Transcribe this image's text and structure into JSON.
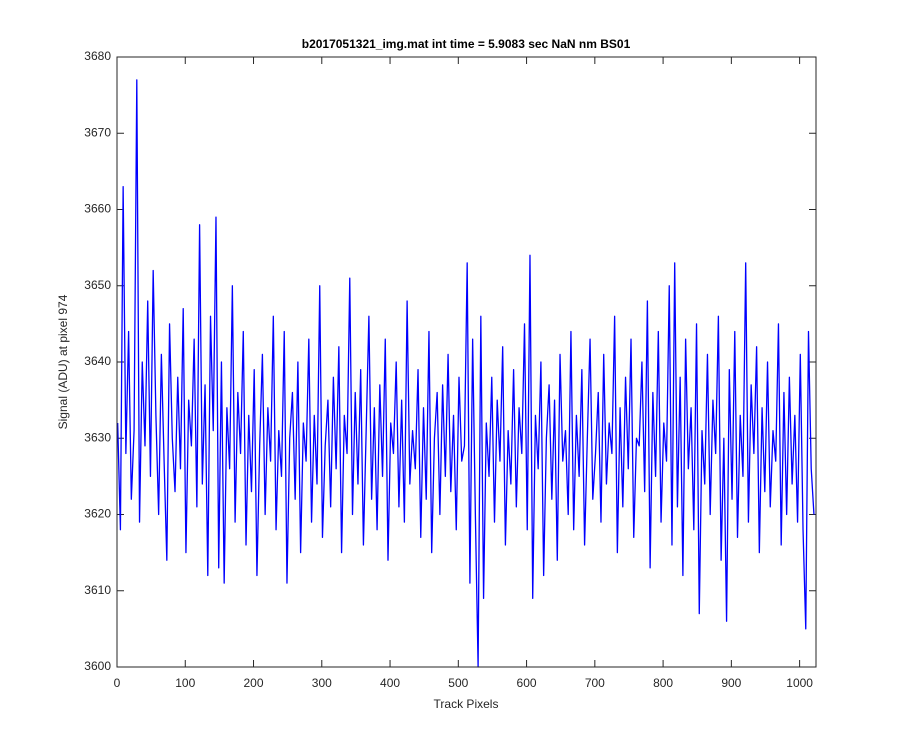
{
  "chart_data": {
    "type": "line",
    "title": "b2017051321_img.mat int time = 5.9083 sec  NaN nm BS01",
    "xlabel": "Track Pixels",
    "ylabel": "Signal (ADU) at pixel 974",
    "color": "#0000ff",
    "xlim": [
      0,
      1024
    ],
    "xticks": [
      0,
      100,
      200,
      300,
      400,
      500,
      600,
      700,
      800,
      900,
      1000
    ],
    "ylim": [
      3600,
      3680
    ],
    "yticks": [
      3600,
      3610,
      3620,
      3630,
      3640,
      3650,
      3660,
      3670,
      3680
    ],
    "x": [
      1,
      5,
      9,
      13,
      17,
      21,
      25,
      29,
      33,
      37,
      41,
      45,
      49,
      53,
      57,
      61,
      65,
      69,
      73,
      77,
      81,
      85,
      89,
      93,
      97,
      101,
      105,
      109,
      113,
      117,
      121,
      125,
      129,
      133,
      137,
      141,
      145,
      149,
      153,
      157,
      161,
      165,
      169,
      173,
      177,
      181,
      185,
      189,
      193,
      197,
      201,
      205,
      209,
      213,
      217,
      221,
      225,
      229,
      233,
      237,
      241,
      245,
      249,
      253,
      257,
      261,
      265,
      269,
      273,
      277,
      281,
      285,
      289,
      293,
      297,
      301,
      305,
      309,
      313,
      317,
      321,
      325,
      329,
      333,
      337,
      341,
      345,
      349,
      353,
      357,
      361,
      365,
      369,
      373,
      377,
      381,
      385,
      389,
      393,
      397,
      401,
      405,
      409,
      413,
      417,
      421,
      425,
      429,
      433,
      437,
      441,
      445,
      449,
      453,
      457,
      461,
      465,
      469,
      473,
      477,
      481,
      485,
      489,
      493,
      497,
      501,
      505,
      509,
      513,
      517,
      521,
      525,
      529,
      533,
      537,
      541,
      545,
      549,
      553,
      557,
      561,
      565,
      569,
      573,
      577,
      581,
      585,
      589,
      593,
      597,
      601,
      605,
      609,
      613,
      617,
      621,
      625,
      629,
      633,
      637,
      641,
      645,
      649,
      653,
      657,
      661,
      665,
      669,
      673,
      677,
      681,
      685,
      689,
      693,
      697,
      701,
      705,
      709,
      713,
      717,
      721,
      725,
      729,
      733,
      737,
      741,
      745,
      749,
      753,
      757,
      761,
      765,
      769,
      773,
      777,
      781,
      785,
      789,
      793,
      797,
      801,
      805,
      809,
      813,
      817,
      821,
      825,
      829,
      833,
      837,
      841,
      845,
      849,
      853,
      857,
      861,
      865,
      869,
      873,
      877,
      881,
      885,
      889,
      893,
      897,
      901,
      905,
      909,
      913,
      917,
      921,
      925,
      929,
      933,
      937,
      941,
      945,
      949,
      953,
      957,
      961,
      965,
      969,
      973,
      977,
      981,
      985,
      989,
      993,
      997,
      1001,
      1005,
      1009,
      1013,
      1017,
      1021
    ],
    "values": [
      3632,
      3618,
      3663,
      3628,
      3644,
      3622,
      3631,
      3677,
      3619,
      3640,
      3629,
      3648,
      3625,
      3652,
      3633,
      3620,
      3641,
      3627,
      3614,
      3645,
      3630,
      3623,
      3638,
      3626,
      3647,
      3615,
      3635,
      3629,
      3643,
      3621,
      3658,
      3624,
      3637,
      3612,
      3646,
      3631,
      3659,
      3613,
      3640,
      3611,
      3634,
      3626,
      3650,
      3619,
      3636,
      3628,
      3644,
      3616,
      3633,
      3623,
      3639,
      3612,
      3629,
      3641,
      3620,
      3634,
      3627,
      3646,
      3618,
      3631,
      3625,
      3644,
      3611,
      3630,
      3636,
      3622,
      3640,
      3615,
      3632,
      3627,
      3643,
      3619,
      3633,
      3624,
      3650,
      3617,
      3629,
      3635,
      3621,
      3638,
      3626,
      3642,
      3615,
      3633,
      3628,
      3651,
      3620,
      3636,
      3624,
      3639,
      3616,
      3631,
      3646,
      3622,
      3634,
      3618,
      3637,
      3625,
      3643,
      3614,
      3632,
      3628,
      3640,
      3621,
      3635,
      3619,
      3648,
      3624,
      3631,
      3626,
      3639,
      3617,
      3634,
      3622,
      3644,
      3615,
      3630,
      3636,
      3620,
      3637,
      3625,
      3641,
      3623,
      3633,
      3618,
      3638,
      3627,
      3629,
      3653,
      3611,
      3643,
      3620,
      3600,
      3646,
      3609,
      3632,
      3625,
      3638,
      3619,
      3635,
      3627,
      3642,
      3616,
      3631,
      3624,
      3639,
      3621,
      3634,
      3628,
      3645,
      3618,
      3654,
      3609,
      3633,
      3626,
      3640,
      3612,
      3630,
      3637,
      3622,
      3635,
      3614,
      3641,
      3627,
      3631,
      3620,
      3644,
      3618,
      3633,
      3625,
      3639,
      3616,
      3630,
      3643,
      3622,
      3628,
      3636,
      3619,
      3641,
      3624,
      3632,
      3628,
      3646,
      3615,
      3634,
      3621,
      3638,
      3626,
      3643,
      3617,
      3630,
      3629,
      3640,
      3623,
      3648,
      3613,
      3636,
      3625,
      3644,
      3619,
      3632,
      3627,
      3650,
      3616,
      3653,
      3621,
      3638,
      3612,
      3643,
      3626,
      3634,
      3618,
      3645,
      3607,
      3631,
      3624,
      3641,
      3620,
      3635,
      3628,
      3646,
      3614,
      3630,
      3606,
      3639,
      3622,
      3644,
      3617,
      3633,
      3625,
      3653,
      3619,
      3637,
      3628,
      3642,
      3615,
      3634,
      3623,
      3640,
      3621,
      3631,
      3627,
      3645,
      3616,
      3636,
      3620,
      3638,
      3624,
      3633,
      3619,
      3641,
      3618,
      3605,
      3644,
      3626,
      3620
    ]
  }
}
